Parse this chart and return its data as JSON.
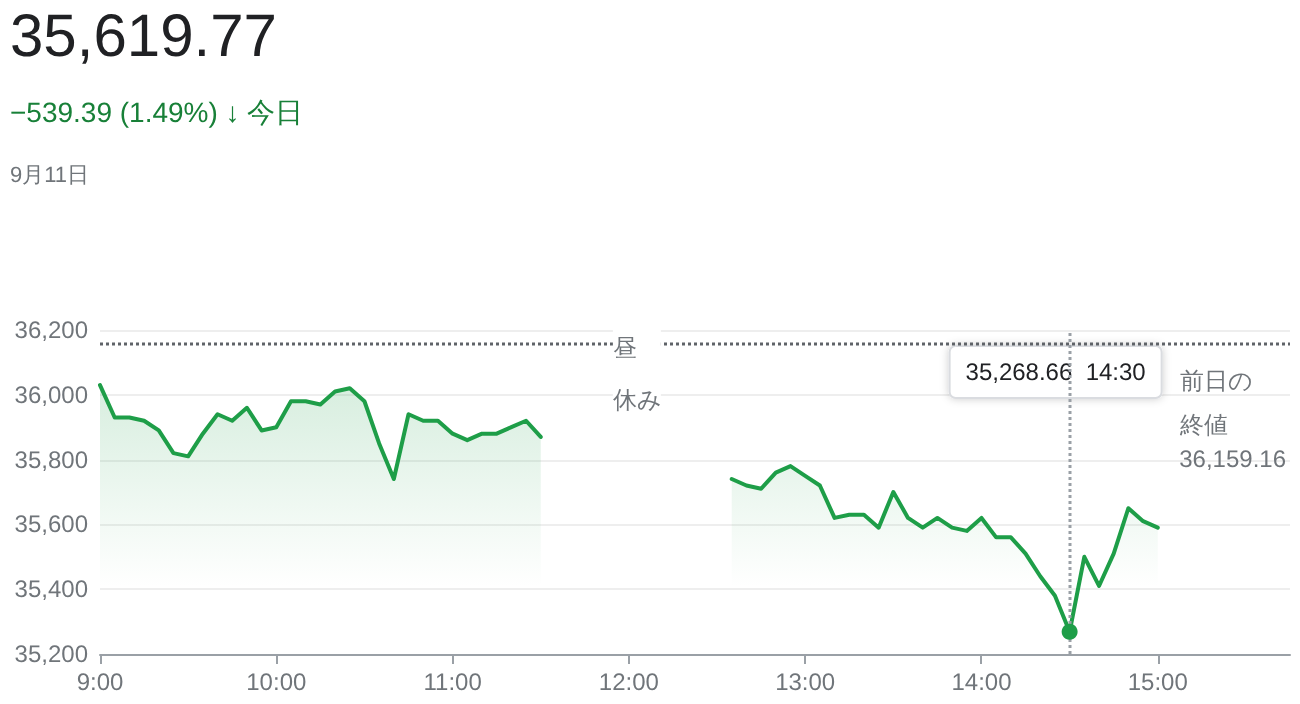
{
  "chart_data": {
    "type": "area",
    "title": "35,619.77",
    "subtitle": "−539.39 (1.49%) ↓ 今日",
    "annotations": [
      "9月11日",
      "昼休み",
      "35,268.66  14:30"
    ],
    "x": [
      9,
      9.0833,
      9.1667,
      9.25,
      9.3333,
      9.4167,
      9.5,
      9.5833,
      9.6667,
      9.75,
      9.8333,
      9.9167,
      10,
      10.0833,
      10.1667,
      10.25,
      10.3333,
      10.4167,
      10.5,
      10.5833,
      10.6667,
      10.75,
      10.8333,
      10.9167,
      11,
      11.0833,
      11.1667,
      11.25,
      11.3333,
      11.4167,
      11.5,
      12,
      12.5833,
      12.6667,
      12.75,
      12.8333,
      12.9167,
      13,
      13.0833,
      13.1667,
      13.25,
      13.3333,
      13.4167,
      13.5,
      13.5833,
      13.6667,
      13.75,
      13.8333,
      13.9167,
      14,
      14.0833,
      14.1667,
      14.25,
      14.3333,
      14.4167,
      14.5,
      14.5833,
      14.6667,
      14.75,
      14.8333,
      14.9167,
      15
    ],
    "series": [
      {
        "color": "#1e9e48",
        "values": [
          36030,
          35930,
          35930,
          35920,
          35890,
          35820,
          35810,
          35880,
          35940,
          35920,
          35960,
          35890,
          35900,
          35980,
          35980,
          35970,
          36010,
          36020,
          35980,
          35850,
          35740,
          35940,
          35920,
          35920,
          35880,
          35860,
          35880,
          35880,
          35900,
          35920,
          35870,
          null,
          35740,
          35720,
          35710,
          35760,
          35780,
          35750,
          35720,
          35620,
          35630,
          35630,
          35590,
          35700,
          35620,
          35590,
          35620,
          35590,
          35580,
          35620,
          35560,
          35560,
          35510,
          35440,
          35380,
          35268.66,
          35500,
          35410,
          35510,
          35650,
          35610,
          35590
        ]
      }
    ],
    "xlim": [
      9,
      15.75
    ],
    "xticks": [
      {
        "value": 9,
        "label": "9:00"
      },
      {
        "value": 10,
        "label": "10:00"
      },
      {
        "value": 11,
        "label": "11:00"
      },
      {
        "value": 12,
        "label": "12:00"
      },
      {
        "value": 13,
        "label": "13:00"
      },
      {
        "value": 14,
        "label": "14:00"
      },
      {
        "value": 15,
        "label": "15:00"
      }
    ],
    "ylim": [
      35200,
      36200
    ],
    "yticks": [
      {
        "value": 35200,
        "label": "35,200"
      },
      {
        "value": 35400,
        "label": "35,400"
      },
      {
        "value": 35600,
        "label": "35,600"
      },
      {
        "value": 35800,
        "label": "35,800"
      },
      {
        "value": 36000,
        "label": "36,000"
      },
      {
        "value": 36200,
        "label": "36,200"
      }
    ],
    "ref_lines": [
      {
        "axis": "y",
        "value": 36159.16,
        "label": "前日の終値 36,159.16",
        "line_style": "dotted",
        "color": "#5f6368"
      },
      {
        "axis": "x",
        "value": 14.5,
        "label": null,
        "line_style": "dotted",
        "color": "#9aa0a6"
      }
    ],
    "grid": "y",
    "marker": "none",
    "line_style": "solid"
  }
}
